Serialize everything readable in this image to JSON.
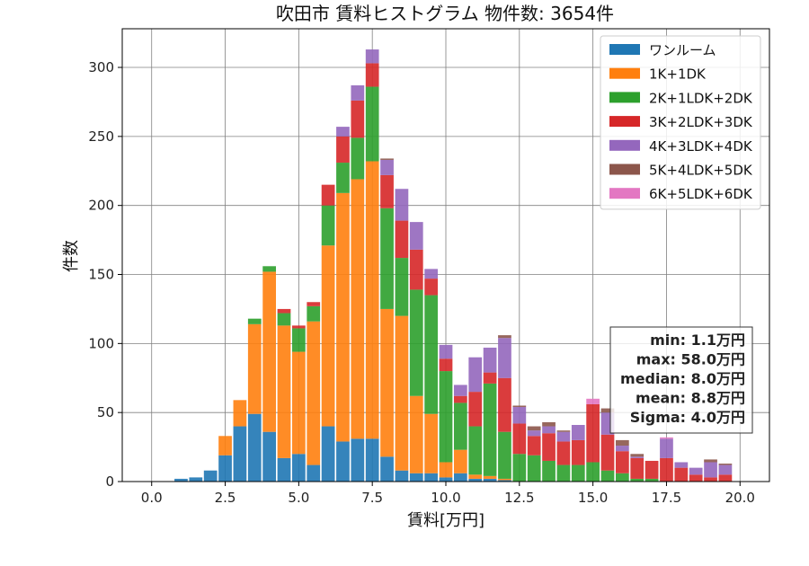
{
  "chart_data": {
    "type": "bar",
    "stacked": true,
    "title": "吹田市 賃料ヒストグラム  物件数: 3654件",
    "xlabel": "賃料[万円]",
    "ylabel": "件数",
    "xlim": [
      -1.0,
      21.0
    ],
    "ylim": [
      0,
      328
    ],
    "xticks": [
      0.0,
      2.5,
      5.0,
      7.5,
      10.0,
      12.5,
      15.0,
      17.5,
      20.0
    ],
    "xtick_labels": [
      "0.0",
      "2.5",
      "5.0",
      "7.5",
      "10.0",
      "12.5",
      "15.0",
      "17.5",
      "20.0"
    ],
    "yticks": [
      0,
      50,
      100,
      150,
      200,
      250,
      300
    ],
    "ytick_labels": [
      "0",
      "50",
      "100",
      "150",
      "200",
      "250",
      "300"
    ],
    "grid": true,
    "legend_position": "top-right",
    "bin_width": 0.5,
    "bins": [
      1.0,
      1.5,
      2.0,
      2.5,
      3.0,
      3.5,
      4.0,
      4.5,
      5.0,
      5.5,
      6.0,
      6.5,
      7.0,
      7.5,
      8.0,
      8.5,
      9.0,
      9.5,
      10.0,
      10.5,
      11.0,
      11.5,
      12.0,
      12.5,
      13.0,
      13.5,
      14.0,
      14.5,
      15.0,
      15.5,
      16.0,
      16.5,
      17.0,
      17.5,
      18.0,
      18.5,
      19.0,
      19.5
    ],
    "series": [
      {
        "name": "ワンルーム",
        "color": "#1f77b4",
        "values": [
          2,
          3,
          8,
          19,
          40,
          49,
          36,
          17,
          20,
          12,
          40,
          29,
          31,
          31,
          18,
          8,
          6,
          6,
          3,
          6,
          2,
          2,
          1,
          0,
          0,
          0,
          0,
          0,
          0,
          0,
          0,
          0,
          0,
          0,
          0,
          0,
          0,
          0
        ]
      },
      {
        "name": "1K+1DK",
        "color": "#ff7f0e",
        "values": [
          0,
          0,
          0,
          14,
          19,
          65,
          116,
          96,
          74,
          104,
          131,
          180,
          188,
          201,
          107,
          112,
          56,
          43,
          11,
          17,
          3,
          2,
          1,
          0,
          0,
          0,
          0,
          0,
          0,
          0,
          0,
          0,
          0,
          0,
          0,
          0,
          0,
          0
        ]
      },
      {
        "name": "2K+1LDK+2DK",
        "color": "#2ca02c",
        "values": [
          0,
          0,
          0,
          0,
          0,
          4,
          4,
          9,
          17,
          11,
          29,
          22,
          30,
          54,
          73,
          42,
          77,
          86,
          66,
          34,
          35,
          67,
          34,
          20,
          19,
          15,
          12,
          12,
          14,
          8,
          6,
          2,
          2,
          0,
          0,
          0,
          0,
          0
        ]
      },
      {
        "name": "3K+2LDK+3DK",
        "color": "#d62728",
        "values": [
          0,
          0,
          0,
          0,
          0,
          0,
          0,
          3,
          2,
          3,
          15,
          19,
          27,
          17,
          24,
          27,
          29,
          12,
          9,
          5,
          25,
          8,
          39,
          22,
          14,
          20,
          17,
          18,
          42,
          26,
          16,
          15,
          13,
          17,
          10,
          5,
          3,
          5
        ]
      },
      {
        "name": "4K+3LDK+4DK",
        "color": "#9467bd",
        "values": [
          0,
          0,
          0,
          0,
          0,
          0,
          0,
          0,
          0,
          0,
          0,
          7,
          11,
          10,
          11,
          23,
          20,
          7,
          10,
          8,
          25,
          18,
          29,
          12,
          4,
          5,
          7,
          11,
          0,
          16,
          4,
          1,
          0,
          14,
          4,
          5,
          11,
          7
        ]
      },
      {
        "name": "5K+4LDK+5DK",
        "color": "#8c564b",
        "values": [
          0,
          0,
          0,
          0,
          0,
          0,
          0,
          0,
          0,
          0,
          0,
          0,
          0,
          0,
          1,
          0,
          0,
          0,
          0,
          0,
          0,
          0,
          2,
          1,
          3,
          3,
          1,
          0,
          0,
          3,
          4,
          2,
          0,
          0,
          0,
          0,
          2,
          1
        ]
      },
      {
        "name": "6K+5LDK+6DK",
        "color": "#e377c2",
        "values": [
          0,
          0,
          0,
          0,
          0,
          0,
          0,
          0,
          0,
          0,
          0,
          0,
          0,
          0,
          0,
          0,
          0,
          0,
          0,
          0,
          0,
          0,
          0,
          0,
          0,
          0,
          0,
          0,
          4,
          0,
          0,
          0,
          0,
          1,
          0,
          0,
          0,
          0
        ]
      }
    ],
    "stats": [
      "min: 1.1万円",
      "max: 58.0万円",
      "median: 8.0万円",
      "mean: 8.8万円",
      "Sigma: 4.0万円"
    ]
  }
}
